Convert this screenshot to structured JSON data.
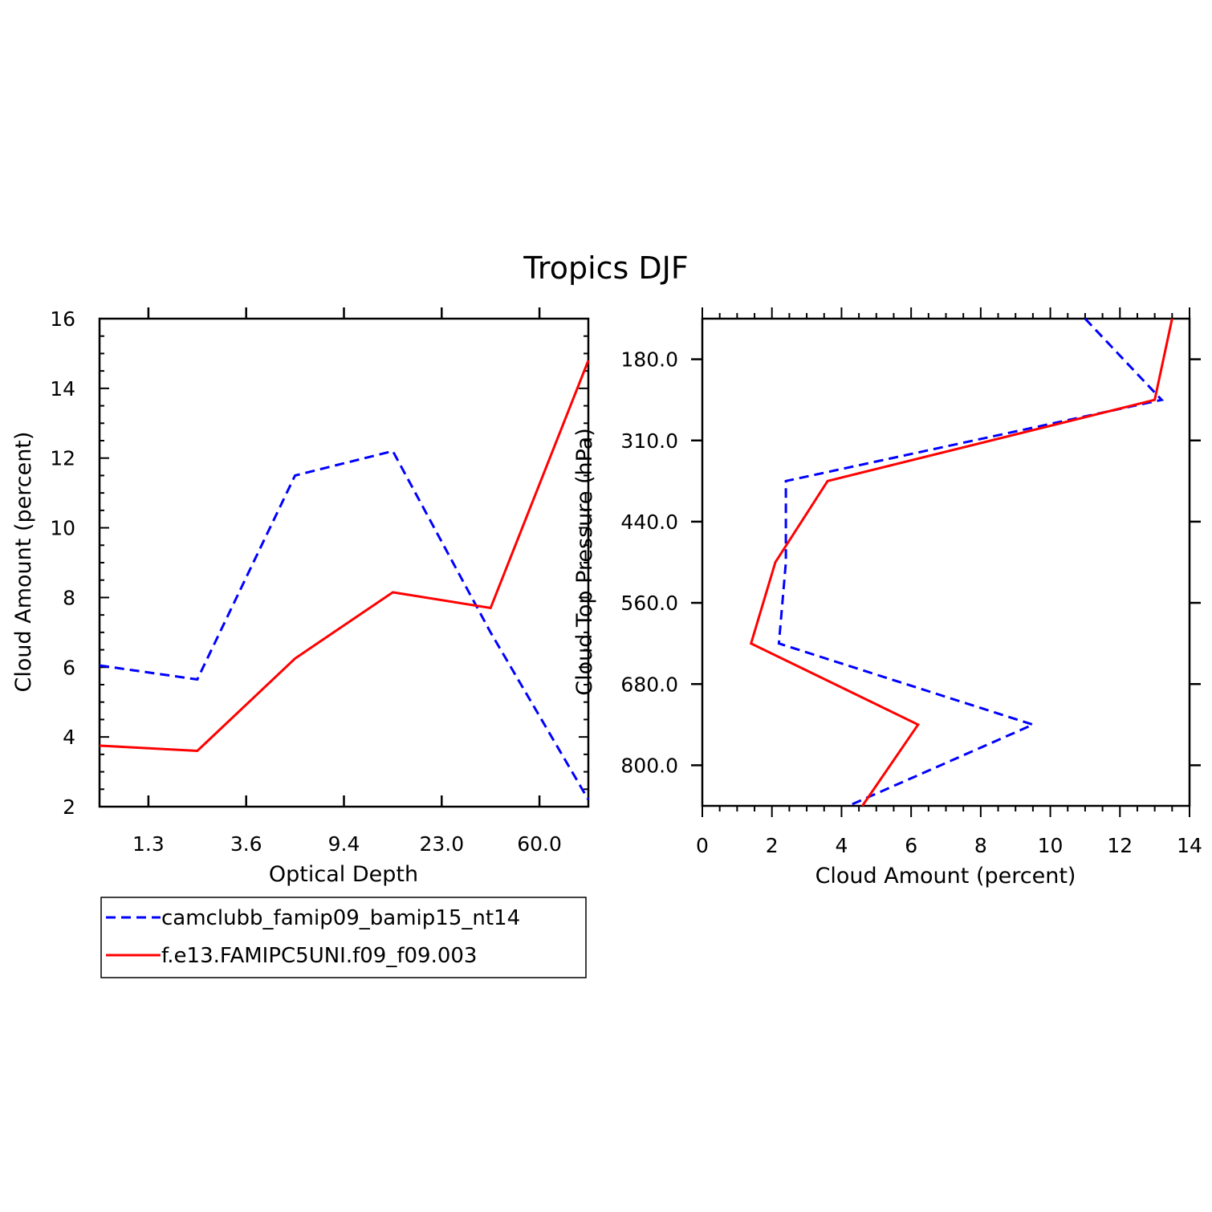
{
  "title": "Tropics DJF",
  "colors": {
    "series_1": "#0000ff",
    "series_2": "#ff0000"
  },
  "legend": {
    "placement": "bottom-left",
    "entries": [
      {
        "label": "camclubb_famip09_bamip15_nt14",
        "color": "#0000ff",
        "style": "dashed"
      },
      {
        "label": "f.e13.FAMIPC5UNI.f09_f09.003",
        "color": "#ff0000",
        "style": "solid"
      }
    ]
  },
  "chart_data": [
    {
      "type": "line",
      "xlabel": "Optical Depth",
      "ylabel": "Cloud Amount (percent)",
      "x_tick_labels": [
        "1.3",
        "3.6",
        "9.4",
        "23.0",
        "60.0"
      ],
      "y_tick_labels": [
        "2",
        "4",
        "6",
        "8",
        "10",
        "12",
        "14",
        "16"
      ],
      "ylim": [
        2,
        16
      ],
      "grid": false,
      "series": [
        {
          "name": "camclubb_famip09_bamip15_nt14",
          "values": [
            6.05,
            5.65,
            11.5,
            12.2,
            7.0,
            2.2
          ]
        },
        {
          "name": "f.e13.FAMIPC5UNI.f09_f09.003",
          "values": [
            3.75,
            3.6,
            6.25,
            8.15,
            7.7,
            14.8
          ]
        }
      ]
    },
    {
      "type": "line",
      "xlabel": "Cloud Amount (percent)",
      "ylabel": "Cloud Top Pressure (hPa)",
      "x_tick_labels": [
        "0",
        "2",
        "4",
        "6",
        "8",
        "10",
        "12",
        "14"
      ],
      "xlim": [
        0,
        14
      ],
      "y_tick_labels": [
        "180.0",
        "310.0",
        "440.0",
        "560.0",
        "680.0",
        "800.0"
      ],
      "grid": false,
      "series": [
        {
          "name": "camclubb_famip09_bamip15_nt14",
          "values": [
            11.0,
            13.2,
            2.4,
            2.4,
            2.2,
            9.5,
            4.2
          ]
        },
        {
          "name": "f.e13.FAMIPC5UNI.f09_f09.003",
          "values": [
            13.5,
            13.0,
            3.6,
            2.1,
            1.4,
            6.2,
            4.6
          ]
        }
      ]
    }
  ]
}
